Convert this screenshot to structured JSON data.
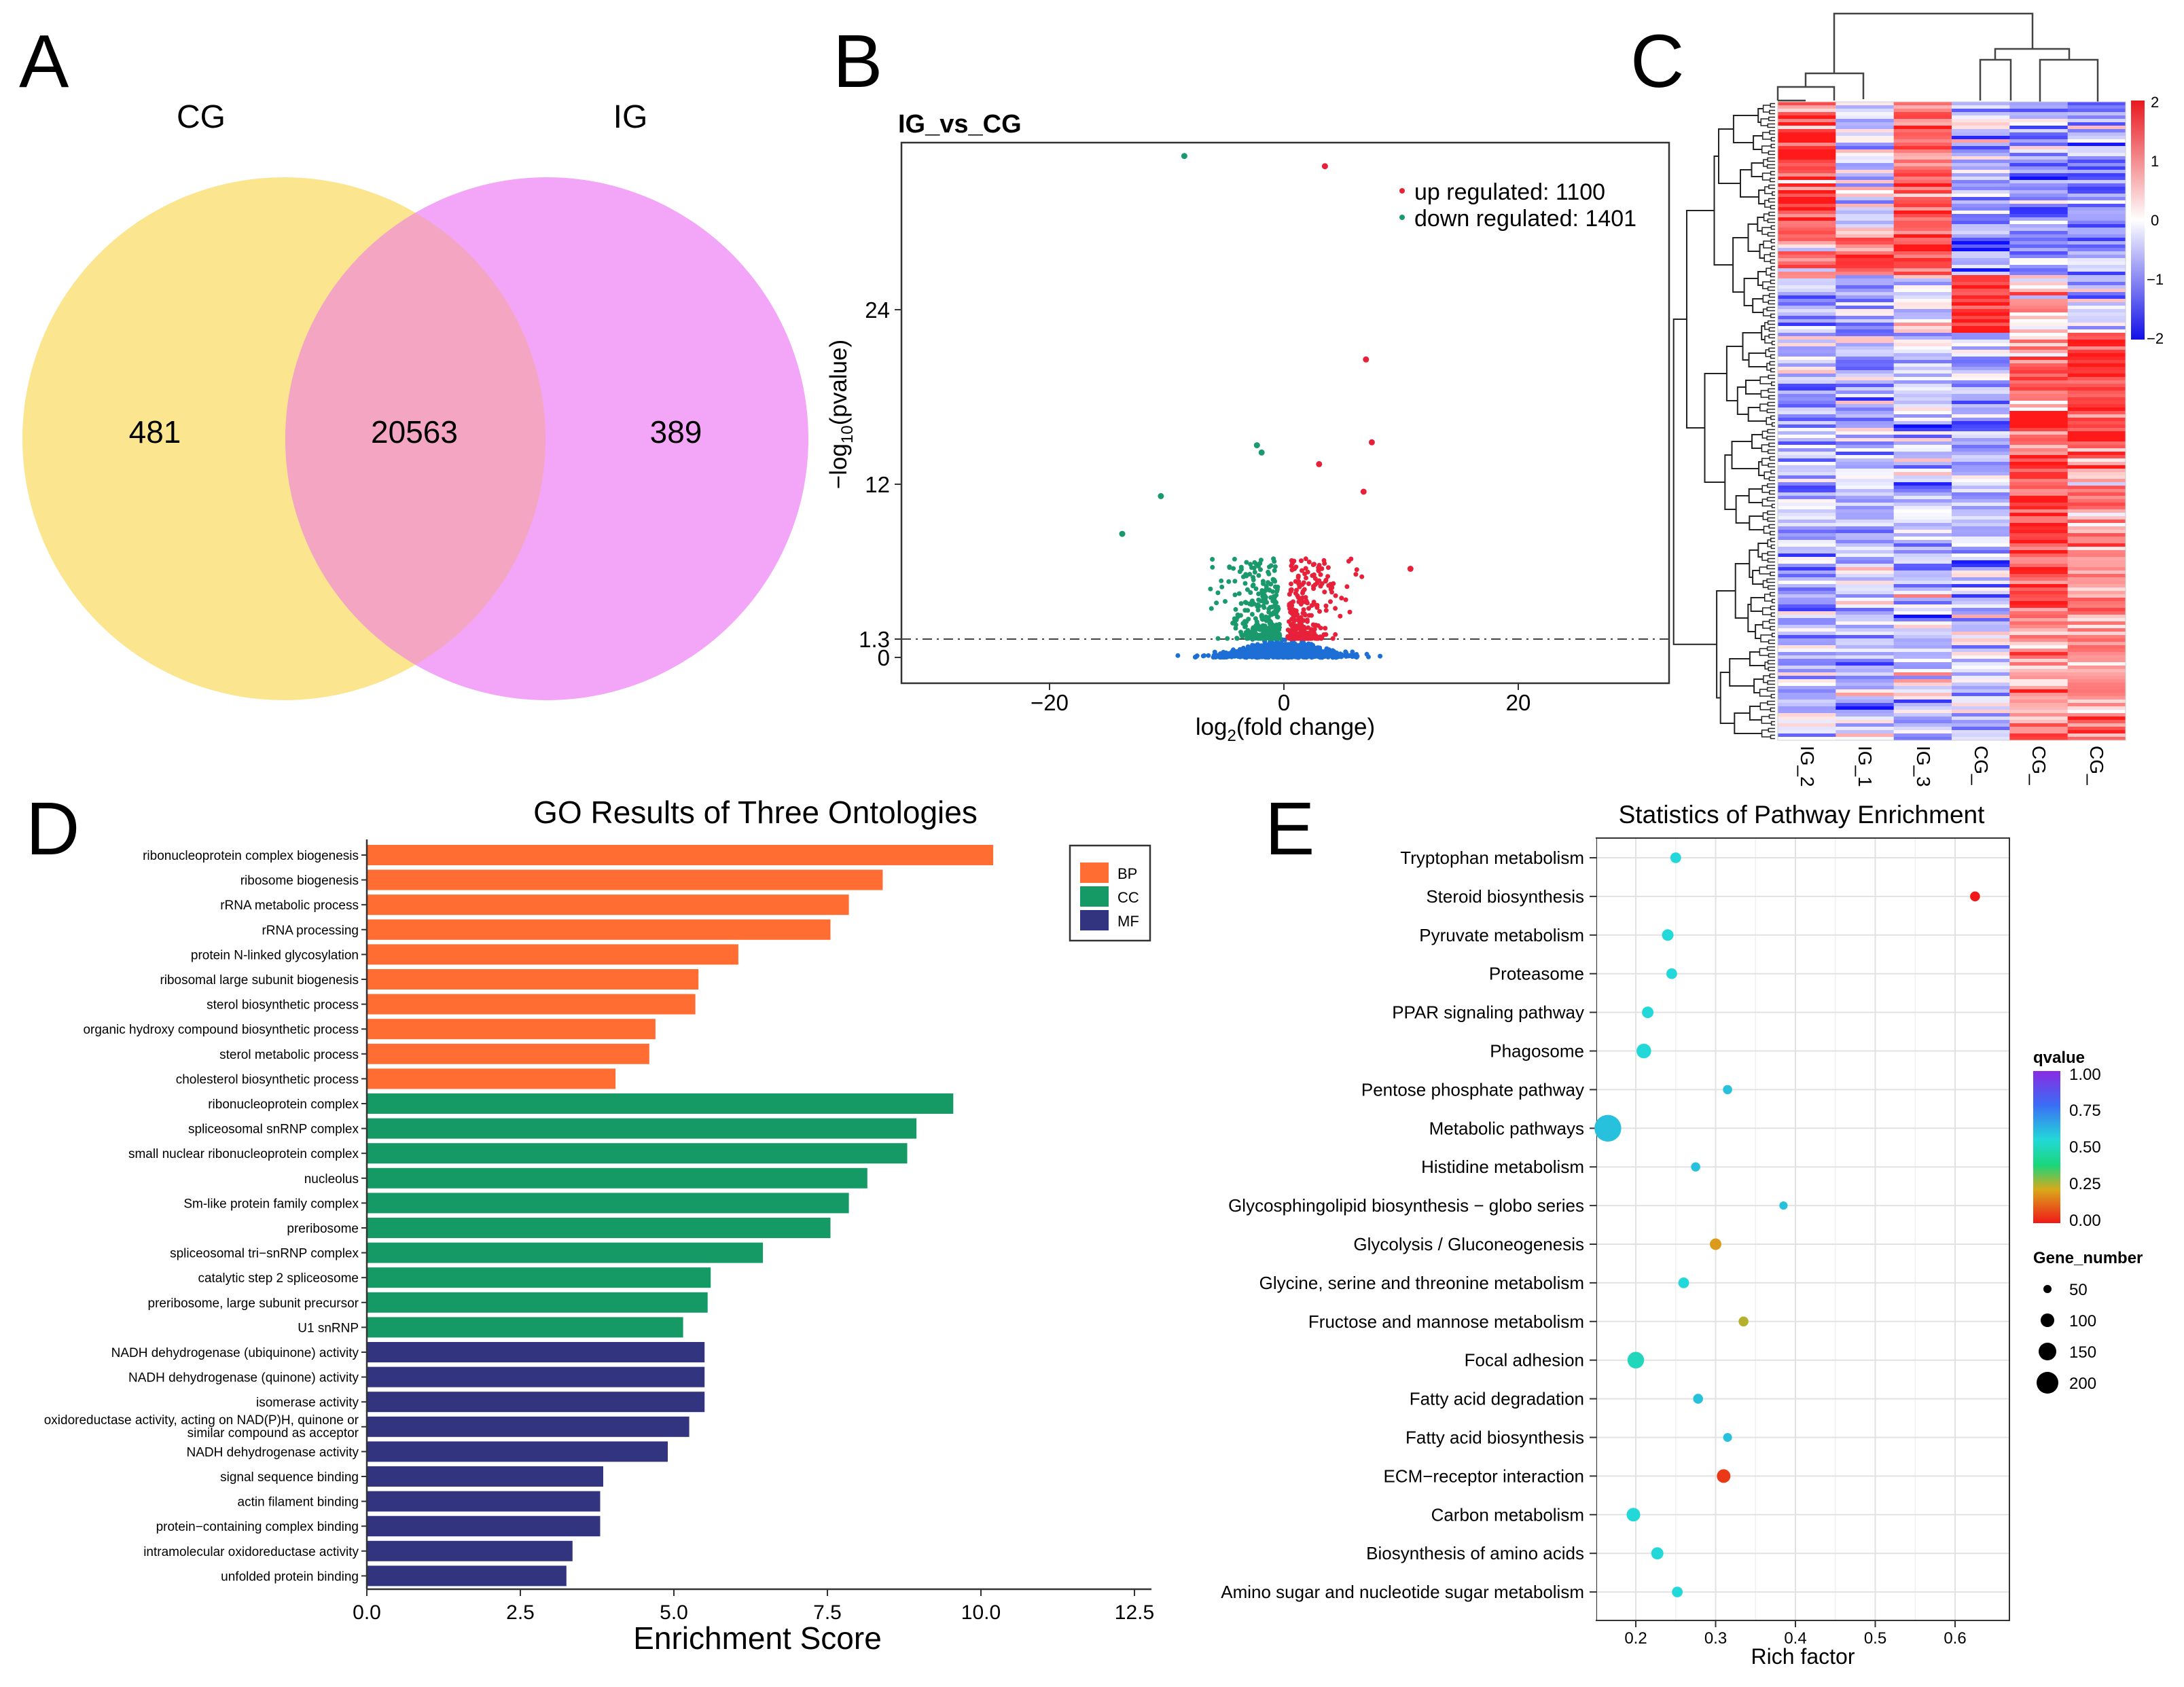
{
  "panels": {
    "a": "A",
    "b": "B",
    "c": "C",
    "d": "D",
    "e": "E"
  },
  "colors": {
    "venn_cg": "#fbe68f",
    "venn_ig": "#f3a6f7",
    "venn_overlap": "#f3a5c2",
    "up": "#e8213a",
    "down": "#1a9a6c",
    "ns": "#1d6fd6",
    "bp": "#ff6d33",
    "cc": "#159a66",
    "mf": "#333480",
    "heat_high": "#e8191f",
    "heat_low": "#1210e8"
  },
  "venn": {
    "set_a": "CG",
    "set_b": "IG",
    "only_a": 481,
    "both": 20563,
    "only_b": 389
  },
  "volcano": {
    "title": "IG_vs_CG",
    "ylabel_html": [
      "−log",
      "10",
      "(pvalue)"
    ],
    "xlabel_html": [
      "log",
      "2",
      "(fold change)"
    ],
    "x_ticks": [
      "−20",
      "0",
      "20"
    ],
    "y_ticks": [
      "0",
      "1.3",
      "12",
      "24"
    ],
    "legend": [
      "up regulated: 1100",
      "down regulated: 1401"
    ]
  },
  "heatmap": {
    "columns": [
      "IG_2",
      "IG_1",
      "IG_3",
      "CG_",
      "CG_",
      "CG_"
    ],
    "scale_ticks": [
      "2",
      "1",
      "0",
      "−1",
      "−2"
    ]
  },
  "go": {
    "title": "GO Results of Three Ontologies",
    "xlabel": "Enrichment Score",
    "x_ticks": [
      "0.0",
      "2.5",
      "5.0",
      "7.5",
      "10.0",
      "12.5"
    ],
    "legend": [
      "BP",
      "CC",
      "MF"
    ]
  },
  "kegg": {
    "title": "Statistics of Pathway Enrichment",
    "xlabel": "Rich factor",
    "x_ticks": [
      "0.2",
      "0.3",
      "0.4",
      "0.5",
      "0.6"
    ],
    "qvalue_title": "qvalue",
    "qvalue_ticks": [
      "1.00",
      "0.75",
      "0.50",
      "0.25",
      "0.00"
    ],
    "gene_title": "Gene_number",
    "gene_ticks": [
      "50",
      "100",
      "150",
      "200"
    ]
  },
  "chart_data": [
    {
      "type": "venn",
      "sets": [
        "CG",
        "IG"
      ],
      "values": {
        "CG_only": 481,
        "CG_and_IG": 20563,
        "IG_only": 389
      }
    },
    {
      "type": "scatter",
      "title": "IG_vs_CG",
      "xlabel": "log2(fold change)",
      "ylabel": "−log10(pvalue)",
      "xlim": [
        -32,
        33
      ],
      "ylim": [
        -1.5,
        36
      ],
      "threshold_y": 1.3,
      "series": [
        {
          "name": "up regulated",
          "count": 1100
        },
        {
          "name": "down regulated",
          "count": 1401
        }
      ],
      "labeled_outliers": [
        {
          "x": -8.5,
          "y": 34.5,
          "group": "down"
        },
        {
          "x": 3.5,
          "y": 33.8,
          "group": "up"
        },
        {
          "x": 7,
          "y": 20.5,
          "group": "up"
        },
        {
          "x": 7.5,
          "y": 14.8,
          "group": "up"
        },
        {
          "x": -2.3,
          "y": 14.6,
          "group": "down"
        },
        {
          "x": -1.9,
          "y": 14.1,
          "group": "down"
        },
        {
          "x": 3,
          "y": 13.3,
          "group": "up"
        },
        {
          "x": 6.8,
          "y": 11.4,
          "group": "up"
        },
        {
          "x": -10.5,
          "y": 11.1,
          "group": "down"
        },
        {
          "x": -13.8,
          "y": 8.5,
          "group": "down"
        },
        {
          "x": 10.8,
          "y": 6.1,
          "group": "up"
        }
      ]
    },
    {
      "type": "heatmap",
      "columns": [
        "IG_2",
        "IG_1",
        "IG_3",
        "CG_",
        "CG_",
        "CG_"
      ],
      "scale": [
        -2,
        2
      ]
    },
    {
      "type": "bar",
      "orientation": "horizontal",
      "title": "GO Results of Three Ontologies",
      "xlabel": "Enrichment Score",
      "xlim": [
        0,
        12.5
      ],
      "groups": [
        {
          "name": "BP",
          "categories": [
            "ribonucleoprotein complex biogenesis",
            "ribosome biogenesis",
            "rRNA metabolic process",
            "rRNA processing",
            "protein N-linked glycosylation",
            "ribosomal large subunit biogenesis",
            "sterol biosynthetic process",
            "organic hydroxy compound biosynthetic process",
            "sterol metabolic process",
            "cholesterol biosynthetic process"
          ],
          "values": [
            10.2,
            8.4,
            7.85,
            7.55,
            6.05,
            5.4,
            5.35,
            4.7,
            4.6,
            4.05
          ]
        },
        {
          "name": "CC",
          "categories": [
            "ribonucleoprotein complex",
            "spliceosomal snRNP complex",
            "small nuclear ribonucleoprotein complex",
            "nucleolus",
            "Sm-like protein family complex",
            "preribosome",
            "spliceosomal tri−snRNP complex",
            "catalytic step 2 spliceosome",
            "preribosome, large subunit precursor",
            "U1 snRNP"
          ],
          "values": [
            9.55,
            8.95,
            8.8,
            8.15,
            7.85,
            7.55,
            6.45,
            5.6,
            5.55,
            5.15
          ]
        },
        {
          "name": "MF",
          "categories": [
            "NADH dehydrogenase (ubiquinone) activity",
            "NADH dehydrogenase (quinone) activity",
            "isomerase activity",
            "oxidoreductase activity, acting on NAD(P)H, quinone or similar compound as acceptor",
            "NADH dehydrogenase activity",
            "signal sequence binding",
            "actin filament binding",
            "protein−containing complex binding",
            "intramolecular oxidoreductase activity",
            "unfolded protein binding"
          ],
          "values": [
            5.5,
            5.5,
            5.5,
            5.25,
            4.9,
            3.85,
            3.8,
            3.8,
            3.35,
            3.25
          ]
        }
      ]
    },
    {
      "type": "scatter",
      "title": "Statistics of Pathway Enrichment",
      "xlabel": "Rich factor",
      "xlim": [
        0.135,
        0.655
      ],
      "color": "qvalue",
      "size": "Gene_number",
      "points": [
        {
          "pathway": "Tryptophan metabolism",
          "rich_factor": 0.25,
          "qvalue": 0.55,
          "gene_number": 20
        },
        {
          "pathway": "Steroid biosynthesis",
          "rich_factor": 0.625,
          "qvalue": 0.0,
          "gene_number": 15
        },
        {
          "pathway": "Pyruvate metabolism",
          "rich_factor": 0.24,
          "qvalue": 0.55,
          "gene_number": 25
        },
        {
          "pathway": "Proteasome",
          "rich_factor": 0.245,
          "qvalue": 0.55,
          "gene_number": 20
        },
        {
          "pathway": "PPAR signaling pathway",
          "rich_factor": 0.215,
          "qvalue": 0.55,
          "gene_number": 25
        },
        {
          "pathway": "Phagosome",
          "rich_factor": 0.21,
          "qvalue": 0.55,
          "gene_number": 50
        },
        {
          "pathway": "Pentose phosphate pathway",
          "rich_factor": 0.315,
          "qvalue": 0.6,
          "gene_number": 12
        },
        {
          "pathway": "Metabolic pathways",
          "rich_factor": 0.165,
          "qvalue": 0.6,
          "gene_number": 230
        },
        {
          "pathway": "Histidine metabolism",
          "rich_factor": 0.275,
          "qvalue": 0.6,
          "gene_number": 12
        },
        {
          "pathway": "Glycosphingolipid biosynthesis − globo series",
          "rich_factor": 0.385,
          "qvalue": 0.6,
          "gene_number": 8
        },
        {
          "pathway": "Glycolysis / Gluconeogenesis",
          "rich_factor": 0.3,
          "qvalue": 0.2,
          "gene_number": 25
        },
        {
          "pathway": "Glycine, serine and threonine metabolism",
          "rich_factor": 0.26,
          "qvalue": 0.55,
          "gene_number": 20
        },
        {
          "pathway": "Fructose and mannose metabolism",
          "rich_factor": 0.335,
          "qvalue": 0.25,
          "gene_number": 15
        },
        {
          "pathway": "Focal adhesion",
          "rich_factor": 0.2,
          "qvalue": 0.5,
          "gene_number": 70
        },
        {
          "pathway": "Fatty acid degradation",
          "rich_factor": 0.278,
          "qvalue": 0.6,
          "gene_number": 15
        },
        {
          "pathway": "Fatty acid biosynthesis",
          "rich_factor": 0.315,
          "qvalue": 0.6,
          "gene_number": 10
        },
        {
          "pathway": "ECM−receptor interaction",
          "rich_factor": 0.31,
          "qvalue": 0.05,
          "gene_number": 40
        },
        {
          "pathway": "Carbon metabolism",
          "rich_factor": 0.197,
          "qvalue": 0.55,
          "gene_number": 40
        },
        {
          "pathway": "Biosynthesis of amino acids",
          "rich_factor": 0.227,
          "qvalue": 0.55,
          "gene_number": 30
        },
        {
          "pathway": "Amino sugar and nucleotide sugar metabolism",
          "rich_factor": 0.252,
          "qvalue": 0.55,
          "gene_number": 20
        }
      ]
    }
  ]
}
